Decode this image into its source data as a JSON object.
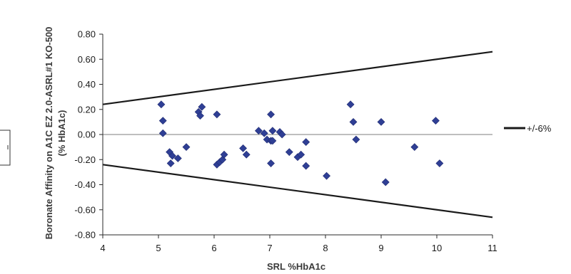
{
  "chart_data": {
    "type": "scatter",
    "xlabel": "SRL %HbA1c",
    "ylabel_line1": "Boronate Affinity on A1C EZ 2.0-ASRL#1 KO-500",
    "ylabel_line2": "(% HbA1c)",
    "xlim": [
      4,
      11
    ],
    "ylim": [
      -0.8,
      0.8
    ],
    "x_ticks": [
      "4",
      "5",
      "6",
      "7",
      "8",
      "9",
      "10",
      "11"
    ],
    "y_ticks": [
      "0.80",
      "0.60",
      "0.40",
      "0.20",
      "0.00",
      "-0.20",
      "-0.40",
      "-0.60",
      "-0.80"
    ],
    "legend": {
      "label": "+/-6%",
      "placement": "right"
    },
    "limit_lines": [
      {
        "x": [
          4,
          11
        ],
        "y": [
          0.24,
          0.66
        ]
      },
      {
        "x": [
          4,
          11
        ],
        "y": [
          -0.24,
          -0.66
        ]
      }
    ],
    "zero_line": 0,
    "points": [
      {
        "x": 5.05,
        "y": 0.24
      },
      {
        "x": 5.08,
        "y": 0.11
      },
      {
        "x": 5.08,
        "y": 0.01
      },
      {
        "x": 5.2,
        "y": -0.14
      },
      {
        "x": 5.25,
        "y": -0.17
      },
      {
        "x": 5.22,
        "y": -0.23
      },
      {
        "x": 5.35,
        "y": -0.19
      },
      {
        "x": 5.5,
        "y": -0.1
      },
      {
        "x": 5.72,
        "y": 0.18
      },
      {
        "x": 5.75,
        "y": 0.15
      },
      {
        "x": 5.78,
        "y": 0.22
      },
      {
        "x": 6.05,
        "y": 0.16
      },
      {
        "x": 6.05,
        "y": -0.24
      },
      {
        "x": 6.1,
        "y": -0.22
      },
      {
        "x": 6.15,
        "y": -0.2
      },
      {
        "x": 6.18,
        "y": -0.16
      },
      {
        "x": 6.52,
        "y": -0.11
      },
      {
        "x": 6.58,
        "y": -0.16
      },
      {
        "x": 6.8,
        "y": 0.03
      },
      {
        "x": 6.9,
        "y": 0.01
      },
      {
        "x": 6.95,
        "y": -0.04
      },
      {
        "x": 7.02,
        "y": 0.16
      },
      {
        "x": 7.02,
        "y": -0.05
      },
      {
        "x": 7.05,
        "y": 0.03
      },
      {
        "x": 7.02,
        "y": -0.23
      },
      {
        "x": 7.05,
        "y": -0.05
      },
      {
        "x": 7.18,
        "y": 0.02
      },
      {
        "x": 7.22,
        "y": 0.0
      },
      {
        "x": 7.35,
        "y": -0.14
      },
      {
        "x": 7.5,
        "y": -0.18
      },
      {
        "x": 7.56,
        "y": -0.16
      },
      {
        "x": 7.65,
        "y": -0.06
      },
      {
        "x": 7.65,
        "y": -0.25
      },
      {
        "x": 8.02,
        "y": -0.33
      },
      {
        "x": 8.45,
        "y": 0.24
      },
      {
        "x": 8.5,
        "y": 0.1
      },
      {
        "x": 8.55,
        "y": -0.04
      },
      {
        "x": 9.0,
        "y": 0.1
      },
      {
        "x": 9.08,
        "y": -0.38
      },
      {
        "x": 9.6,
        "y": -0.1
      },
      {
        "x": 9.98,
        "y": 0.11
      },
      {
        "x": 10.05,
        "y": -0.23
      }
    ],
    "colors": {
      "marker": "#2f3f95",
      "marker_edge": "#1f2a70",
      "limit_line": "#1a1a1a",
      "zero_line": "#a8a8a8",
      "axis": "#2a2a2a"
    }
  }
}
